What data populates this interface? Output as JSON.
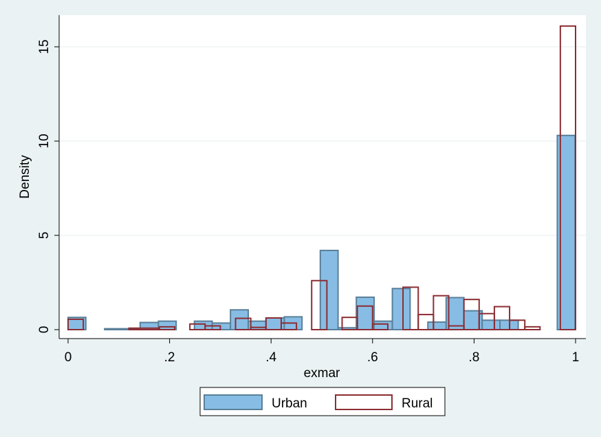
{
  "chart_data": {
    "type": "bar",
    "xlabel": "exmar",
    "ylabel": "Density",
    "xlim": [
      0,
      1
    ],
    "ylim": [
      0,
      16.5
    ],
    "x_ticks": [
      {
        "value": 0,
        "label": "0"
      },
      {
        "value": 0.2,
        "label": ".2"
      },
      {
        "value": 0.4,
        "label": ".4"
      },
      {
        "value": 0.6,
        "label": ".6"
      },
      {
        "value": 0.8,
        "label": ".8"
      },
      {
        "value": 1,
        "label": "1"
      }
    ],
    "y_ticks": [
      {
        "value": 0,
        "label": "0"
      },
      {
        "value": 5,
        "label": "5"
      },
      {
        "value": 10,
        "label": "10"
      },
      {
        "value": 15,
        "label": "15"
      }
    ],
    "grid": true,
    "legend_position": "bottom",
    "series": [
      {
        "name": "Urban",
        "fill": "#87bde5",
        "stroke": "#5a7f99",
        "bars": [
          {
            "x0": 0.0,
            "x1": 0.035,
            "value": 0.65
          },
          {
            "x0": 0.072,
            "x1": 0.107,
            "value": 0.05
          },
          {
            "x0": 0.107,
            "x1": 0.142,
            "value": 0.05
          },
          {
            "x0": 0.142,
            "x1": 0.178,
            "value": 0.38
          },
          {
            "x0": 0.178,
            "x1": 0.213,
            "value": 0.45
          },
          {
            "x0": 0.249,
            "x1": 0.284,
            "value": 0.45
          },
          {
            "x0": 0.284,
            "x1": 0.32,
            "value": 0.35
          },
          {
            "x0": 0.32,
            "x1": 0.355,
            "value": 1.05
          },
          {
            "x0": 0.355,
            "x1": 0.39,
            "value": 0.45
          },
          {
            "x0": 0.39,
            "x1": 0.426,
            "value": 0.62
          },
          {
            "x0": 0.426,
            "x1": 0.461,
            "value": 0.68
          },
          {
            "x0": 0.497,
            "x1": 0.532,
            "value": 4.2
          },
          {
            "x0": 0.532,
            "x1": 0.568,
            "value": 0.1
          },
          {
            "x0": 0.568,
            "x1": 0.603,
            "value": 1.72
          },
          {
            "x0": 0.603,
            "x1": 0.639,
            "value": 0.45
          },
          {
            "x0": 0.639,
            "x1": 0.674,
            "value": 2.18
          },
          {
            "x0": 0.709,
            "x1": 0.745,
            "value": 0.4
          },
          {
            "x0": 0.745,
            "x1": 0.78,
            "value": 1.7
          },
          {
            "x0": 0.78,
            "x1": 0.816,
            "value": 1.0
          },
          {
            "x0": 0.816,
            "x1": 0.851,
            "value": 0.5
          },
          {
            "x0": 0.851,
            "x1": 0.887,
            "value": 0.5
          },
          {
            "x0": 0.964,
            "x1": 0.999,
            "value": 10.3
          }
        ]
      },
      {
        "name": "Rural",
        "fill": "none",
        "stroke": "#8c2d33",
        "bars": [
          {
            "x0": 0.0,
            "x1": 0.03,
            "value": 0.55
          },
          {
            "x0": 0.12,
            "x1": 0.18,
            "value": 0.08
          },
          {
            "x0": 0.18,
            "x1": 0.21,
            "value": 0.15
          },
          {
            "x0": 0.24,
            "x1": 0.27,
            "value": 0.3
          },
          {
            "x0": 0.27,
            "x1": 0.3,
            "value": 0.2
          },
          {
            "x0": 0.33,
            "x1": 0.36,
            "value": 0.6
          },
          {
            "x0": 0.36,
            "x1": 0.39,
            "value": 0.12
          },
          {
            "x0": 0.39,
            "x1": 0.42,
            "value": 0.62
          },
          {
            "x0": 0.42,
            "x1": 0.45,
            "value": 0.35
          },
          {
            "x0": 0.48,
            "x1": 0.51,
            "value": 2.6
          },
          {
            "x0": 0.54,
            "x1": 0.57,
            "value": 0.65
          },
          {
            "x0": 0.57,
            "x1": 0.6,
            "value": 1.25
          },
          {
            "x0": 0.6,
            "x1": 0.63,
            "value": 0.3
          },
          {
            "x0": 0.66,
            "x1": 0.69,
            "value": 2.25
          },
          {
            "x0": 0.69,
            "x1": 0.72,
            "value": 0.8
          },
          {
            "x0": 0.72,
            "x1": 0.75,
            "value": 1.8
          },
          {
            "x0": 0.75,
            "x1": 0.78,
            "value": 0.2
          },
          {
            "x0": 0.78,
            "x1": 0.81,
            "value": 1.6
          },
          {
            "x0": 0.81,
            "x1": 0.84,
            "value": 0.85
          },
          {
            "x0": 0.84,
            "x1": 0.87,
            "value": 1.22
          },
          {
            "x0": 0.87,
            "x1": 0.9,
            "value": 0.5
          },
          {
            "x0": 0.9,
            "x1": 0.93,
            "value": 0.15
          },
          {
            "x0": 0.97,
            "x1": 1.0,
            "value": 16.1
          }
        ]
      }
    ]
  },
  "legend": {
    "items": [
      {
        "label": "Urban",
        "fill": "#87bde5",
        "stroke": "#5a7f99"
      },
      {
        "label": "Rural",
        "fill": "none",
        "stroke": "#8c2d33"
      }
    ]
  },
  "colors": {
    "background": "#eaf2f3",
    "plot_background": "#ffffff",
    "grid": "#e5ecee"
  }
}
